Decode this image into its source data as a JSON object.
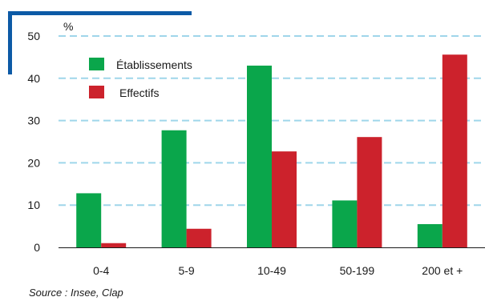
{
  "colors": {
    "accent": "#0c5aa6",
    "grid": "#9fd6ea",
    "axis": "#1a1a1a"
  },
  "source": "Source : Insee, Clap",
  "chart_data": {
    "type": "bar",
    "title": "",
    "xlabel": "",
    "ylabel": "%",
    "ylim": [
      0,
      50
    ],
    "yticks": [
      0,
      10,
      20,
      30,
      40,
      50
    ],
    "grid": true,
    "legend_position": "top-left",
    "categories": [
      "0-4",
      "5-9",
      "10-49",
      "50-199",
      "200 et +"
    ],
    "series": [
      {
        "name": "Établissements",
        "color": "#0aa64b",
        "values": [
          12.8,
          27.7,
          43.0,
          11.1,
          5.5
        ]
      },
      {
        "name": "Effectifs",
        "color": "#cc222c",
        "values": [
          1.0,
          4.4,
          22.7,
          26.1,
          45.6
        ]
      }
    ]
  }
}
